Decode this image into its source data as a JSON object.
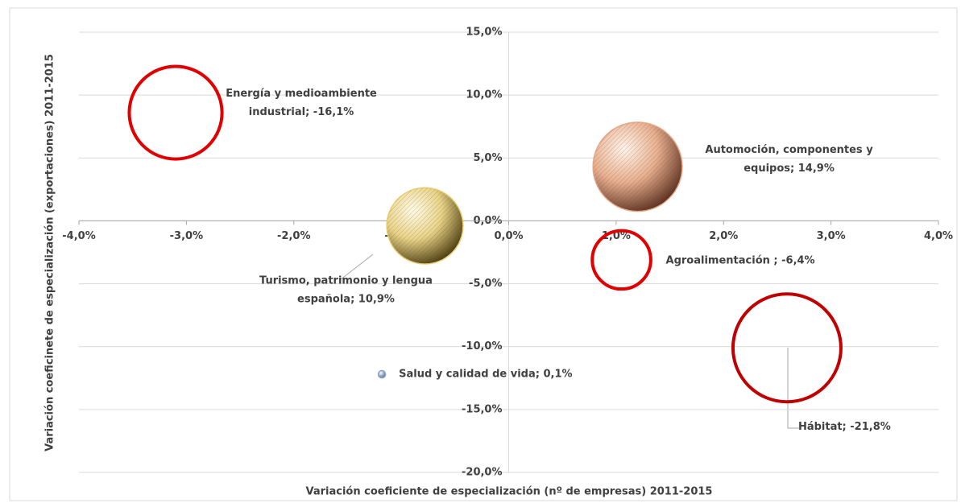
{
  "chart_data": {
    "type": "bubble",
    "xlabel": "Variación coeficiente de especialización (nº de empresas) 2011-2015",
    "ylabel": "Variación coeficinete de especialización (exportaciones) 2011-2015",
    "x": [
      -3.1,
      1.2,
      -0.78,
      1.05,
      2.59,
      -1.18
    ],
    "y": [
      8.6,
      4.3,
      -0.4,
      -3.1,
      -10.1,
      -12.2
    ],
    "sizes": [
      -16.1,
      14.9,
      10.9,
      -6.4,
      -21.8,
      0.1
    ],
    "labels": [
      [
        "Energía y medioambiente",
        "industrial; -16,1%"
      ],
      [
        "Automoción, componentes y",
        "equipos; 14,9%"
      ],
      [
        "Turismo, patrimonio y lengua",
        "española; 10,9%"
      ],
      [
        "Agroalimentación ; -6,4%"
      ],
      [
        "Hábitat; -21,8%"
      ],
      [
        "Salud y calidad de vida; 0,1%"
      ]
    ],
    "colors": [
      "#e00000",
      "#e8a888",
      "#e8d070",
      "#e00000",
      "#c00000",
      "#8aa4c8"
    ],
    "xlim": [
      -4,
      4
    ],
    "xticks": [
      {
        "value": -4,
        "label": "-4,0%"
      },
      {
        "value": -3,
        "label": "-3,0%"
      },
      {
        "value": -2,
        "label": "-2,0%"
      },
      {
        "value": -1,
        "label": "-1,0%"
      },
      {
        "value": 0,
        "label": "0,0%"
      },
      {
        "value": 1,
        "label": "1,0%"
      },
      {
        "value": 2,
        "label": "2,0%"
      },
      {
        "value": 3,
        "label": "3,0%"
      },
      {
        "value": 4,
        "label": "4,0%"
      }
    ],
    "ylim": [
      -20,
      15
    ],
    "yticks": [
      {
        "value": -20,
        "label": "-20,0%"
      },
      {
        "value": -15,
        "label": "-15,0%"
      },
      {
        "value": -10,
        "label": "-10,0%"
      },
      {
        "value": -5,
        "label": "-5,0%"
      },
      {
        "value": 0,
        "label": "0,0%"
      },
      {
        "value": 5,
        "label": "5,0%"
      },
      {
        "value": 10,
        "label": "10,0%"
      },
      {
        "value": 15,
        "label": "15,0%"
      }
    ],
    "grid": true
  }
}
